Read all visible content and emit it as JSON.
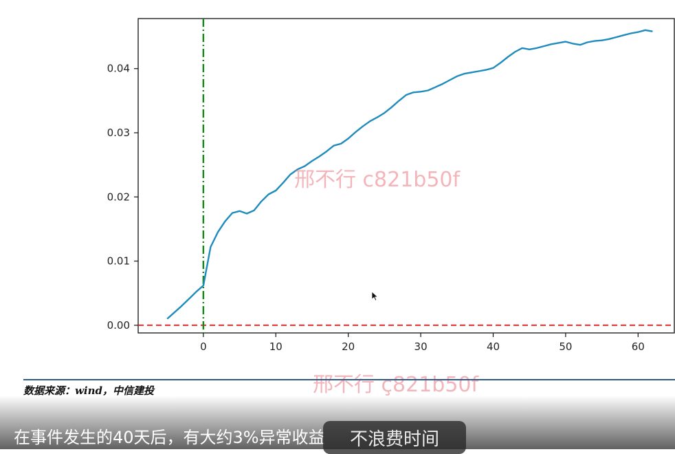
{
  "chart_data": {
    "type": "line",
    "x": [
      -5,
      -4,
      -3,
      -2,
      -1,
      0,
      1,
      2,
      3,
      4,
      5,
      6,
      7,
      8,
      9,
      10,
      11,
      12,
      13,
      14,
      15,
      16,
      17,
      18,
      19,
      20,
      21,
      22,
      23,
      24,
      25,
      26,
      27,
      28,
      29,
      30,
      31,
      32,
      33,
      34,
      35,
      36,
      37,
      38,
      39,
      40,
      41,
      42,
      43,
      44,
      45,
      46,
      47,
      48,
      49,
      50,
      51,
      52,
      53,
      54,
      55,
      56,
      57,
      58,
      59,
      60,
      61,
      62
    ],
    "series": [
      {
        "values": [
          0.001,
          0.002,
          0.003,
          0.0041,
          0.0052,
          0.0062,
          0.0122,
          0.0145,
          0.0162,
          0.0175,
          0.0178,
          0.0174,
          0.0179,
          0.0193,
          0.0204,
          0.021,
          0.0222,
          0.0235,
          0.0243,
          0.0248,
          0.0256,
          0.0263,
          0.0271,
          0.028,
          0.0283,
          0.0291,
          0.0301,
          0.031,
          0.0318,
          0.0324,
          0.0331,
          0.034,
          0.035,
          0.0359,
          0.0363,
          0.0364,
          0.0366,
          0.0371,
          0.0376,
          0.0382,
          0.0388,
          0.0392,
          0.0394,
          0.0396,
          0.0398,
          0.0401,
          0.0409,
          0.0418,
          0.0426,
          0.0432,
          0.043,
          0.0432,
          0.0435,
          0.0438,
          0.044,
          0.0442,
          0.0439,
          0.0437,
          0.0441,
          0.0443,
          0.0444,
          0.0446,
          0.0449,
          0.0452,
          0.0455,
          0.0457,
          0.046,
          0.0458
        ],
        "color": "#1f8bbd"
      }
    ],
    "xlim": [
      -9,
      65
    ],
    "ylim": [
      -0.0012,
      0.0478
    ],
    "xticks": [
      "0",
      "10",
      "20",
      "30",
      "40",
      "50",
      "60"
    ],
    "xtick_values": [
      0,
      10,
      20,
      30,
      40,
      50,
      60
    ],
    "yticks": [
      "0.00",
      "0.01",
      "0.02",
      "0.03",
      "0.04"
    ],
    "ytick_values": [
      0,
      0.01,
      0.02,
      0.03,
      0.04
    ],
    "vline": {
      "x": 0,
      "color": "#138a13",
      "style": "dash-dot"
    },
    "hline": {
      "y": 0,
      "color": "#d42a2a",
      "style": "dashed"
    },
    "grid": false
  },
  "watermark": {
    "text1": "邢不行 c821b50f",
    "text2": "邢不行 ç821b50f"
  },
  "source": {
    "text": "数据来源：wind，中信建投"
  },
  "subtitle": {
    "text": "在事件发生的40天后，有大约3%异常收益"
  },
  "overlay_button": {
    "label": "不浪费时间"
  },
  "colors": {
    "line": "#1f8bbd",
    "event_line": "#138a13",
    "zero_line": "#d42a2a",
    "rule": "#2e5a8a"
  },
  "icons": {
    "cursor": "mouse-pointer-icon"
  }
}
